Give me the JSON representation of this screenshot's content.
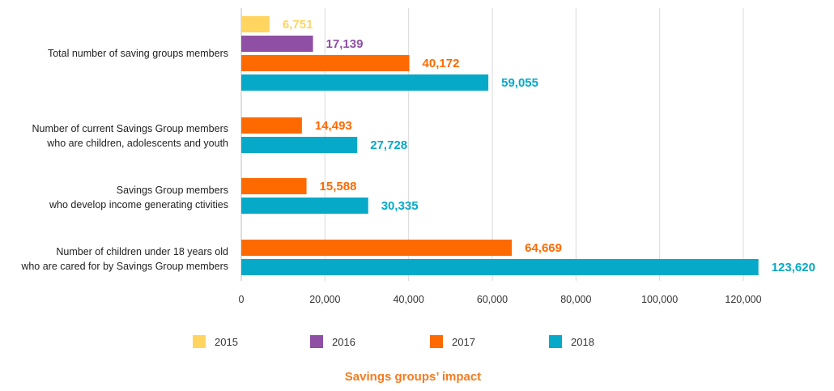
{
  "chart_data": {
    "type": "bar",
    "orientation": "horizontal",
    "title": "Savings groups’ impact",
    "categories": [
      [
        "Total number of saving groups members"
      ],
      [
        "Number of current Savings Group members",
        "who are children, adolescents and youth"
      ],
      [
        "Savings Group members",
        "who develop income generating ctivities"
      ],
      [
        "Number of children under 18 years old",
        "who are cared for by Savings Group members"
      ]
    ],
    "series": [
      {
        "name": "2015",
        "color": "#FFD45F",
        "values": [
          6751,
          null,
          null,
          null
        ],
        "labels": [
          "6,751",
          null,
          null,
          null
        ]
      },
      {
        "name": "2016",
        "color": "#8E4FA4",
        "values": [
          17139,
          null,
          null,
          null
        ],
        "labels": [
          "17,139",
          null,
          null,
          null
        ]
      },
      {
        "name": "2017",
        "color": "#FF6A00",
        "values": [
          40172,
          14493,
          15588,
          64669
        ],
        "labels": [
          "40,172",
          "14,493",
          "15,588",
          "64,669"
        ]
      },
      {
        "name": "2018",
        "color": "#06A9C7",
        "values": [
          59055,
          27728,
          30335,
          123620
        ],
        "labels": [
          "59,055",
          "27,728",
          "30,335",
          "123,620"
        ]
      }
    ],
    "xlim": [
      0,
      130000
    ],
    "xticks": [
      0,
      20000,
      40000,
      60000,
      80000,
      100000,
      120000
    ],
    "xtick_labels": [
      "0",
      "20,000",
      "40,000",
      "60,000",
      "80,000",
      "100,000",
      "120,000"
    ],
    "grid": "vertical",
    "legend_position": "bottom",
    "title_color": "#F47B20"
  }
}
